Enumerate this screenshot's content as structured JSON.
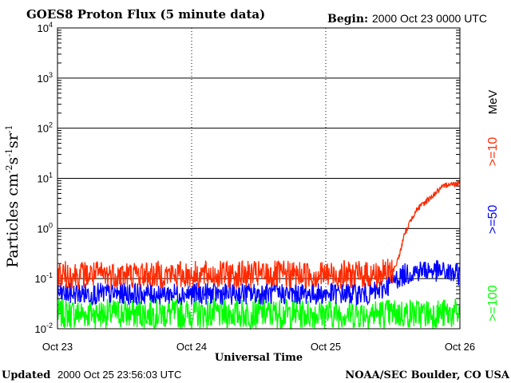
{
  "chart_data": {
    "type": "line",
    "title": "GOES8 Proton Flux (5 minute data)",
    "begin_label": "Begin:",
    "begin_value": "2000 Oct 23 0000 UTC",
    "xlabel": "Universal Time",
    "ylabel": "Particles cm-2s-1sr-1",
    "y_scale": "log",
    "ylim": [
      0.01,
      10000
    ],
    "grid": true,
    "legend_placement": "right",
    "x_ticks": [
      "Oct 23",
      "Oct 24",
      "Oct 25",
      "Oct 26"
    ],
    "y_ticks": [
      "10-2",
      "10-1",
      "100",
      "101",
      "102",
      "103",
      "104"
    ],
    "legend_unit": "MeV",
    "series": [
      {
        "name": ">=10",
        "color": "#ff2a00",
        "x_hours": [
          0,
          6,
          12,
          18,
          24,
          30,
          36,
          42,
          48,
          54,
          57,
          60,
          61,
          62,
          63,
          64,
          66,
          68,
          70,
          71,
          72
        ],
        "values": [
          0.12,
          0.12,
          0.12,
          0.12,
          0.12,
          0.12,
          0.12,
          0.12,
          0.12,
          0.12,
          0.12,
          0.14,
          0.25,
          0.7,
          1.3,
          2.2,
          3.5,
          5.5,
          8.0,
          7.5,
          8.5
        ]
      },
      {
        "name": ">=50",
        "color": "#0000ff",
        "x_hours": [
          0,
          12,
          24,
          36,
          48,
          56,
          58,
          60,
          62,
          64,
          66,
          68,
          72
        ],
        "values": [
          0.05,
          0.05,
          0.05,
          0.05,
          0.05,
          0.05,
          0.06,
          0.09,
          0.12,
          0.14,
          0.15,
          0.14,
          0.12
        ]
      },
      {
        "name": ">=100",
        "color": "#00ff00",
        "x_hours": [
          0,
          12,
          24,
          36,
          48,
          60,
          72
        ],
        "values": [
          0.02,
          0.02,
          0.02,
          0.02,
          0.02,
          0.02,
          0.02
        ]
      }
    ]
  },
  "footer": {
    "updated_label": "Updated",
    "updated_value": "2000 Oct 25 23:56:03 UTC",
    "credit": "NOAA/SEC Boulder, CO USA"
  }
}
